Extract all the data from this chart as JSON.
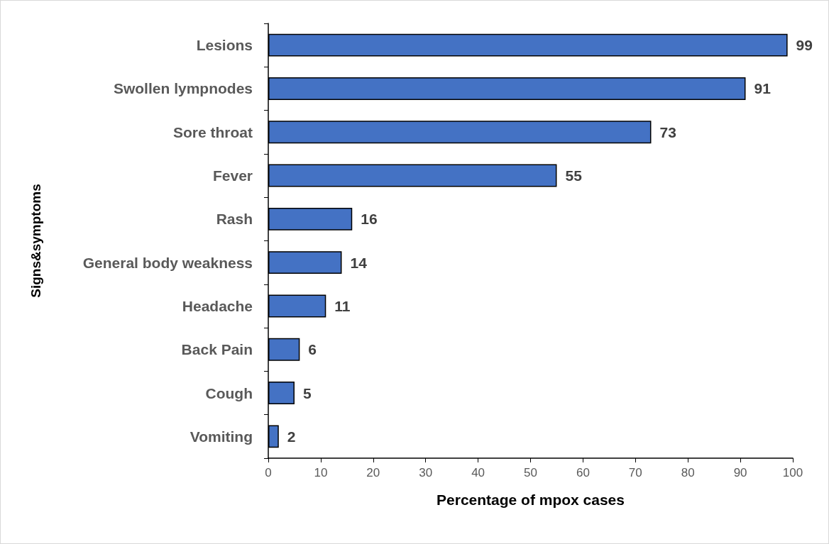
{
  "chart_data": {
    "type": "bar",
    "orientation": "horizontal",
    "xlabel": "Percentage of mpox cases",
    "ylabel": "Signs&symptoms",
    "categories": [
      "Lesions",
      "Swollen lympnodes",
      "Sore throat",
      "Fever",
      "Rash",
      "General body weakness",
      "Headache",
      "Back Pain",
      "Cough",
      "Vomiting"
    ],
    "values": [
      99,
      91,
      73,
      55,
      16,
      14,
      11,
      6,
      5,
      2
    ],
    "color": "#4472c4",
    "data_labels": true,
    "grid": false,
    "xlim": [
      0,
      100
    ],
    "xticks": [
      0,
      10,
      20,
      30,
      40,
      50,
      60,
      70,
      80,
      90,
      100
    ]
  }
}
